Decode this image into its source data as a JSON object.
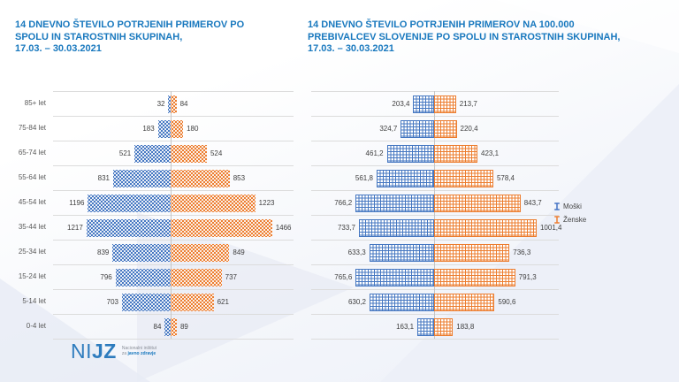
{
  "colors": {
    "title_blue": "#1878BE",
    "male_series": "#4472C4",
    "female_series": "#ED7D31",
    "category_label_text": "#595959",
    "value_label_text": "#404040",
    "gridline": "#DCDCDC"
  },
  "chart_data": [
    {
      "type": "bar",
      "variant": "diverging-population-pyramid",
      "title": "14 DNEVNO ŠTEVILO POTRJENIH PRIMEROV PO\nSPOLU IN STAROSTNIH SKUPINAH,\n17.03. – 30.03.2021",
      "categories": [
        "85+ let",
        "75-84 let",
        "65-74 let",
        "55-64 let",
        "45-54 let",
        "35-44 let",
        "25-34 let",
        "15-24 let",
        "5-14 let",
        "0-4 let"
      ],
      "series": [
        {
          "name": "Moški",
          "side": "left",
          "color": "#4472C4",
          "pattern": "dots",
          "values": [
            32,
            183,
            521,
            831,
            1196,
            1217,
            839,
            796,
            703,
            84
          ]
        },
        {
          "name": "Ženske",
          "side": "right",
          "color": "#ED7D31",
          "pattern": "dots",
          "values": [
            84,
            180,
            524,
            853,
            1223,
            1466,
            849,
            737,
            621,
            89
          ]
        }
      ],
      "xlim": [
        0,
        1700
      ],
      "grid": "horizontal-row-separators",
      "value_labels": "outside-bar-ends",
      "decimal_comma": false,
      "legend": "none"
    },
    {
      "type": "bar",
      "variant": "diverging-population-pyramid",
      "title": "14 DNEVNO ŠTEVILO POTRJENIH PRIMEROV NA 100.000\nPREBIVALCEV SLOVENIJE PO SPOLU IN STAROSTNIH SKUPINAH,\n17.03. – 30.03.2021",
      "categories": [
        "85+ let",
        "75-84 let",
        "65-74 let",
        "55-64 let",
        "45-54 let",
        "35-44 let",
        "25-34 let",
        "15-24 let",
        "5-14 let",
        "0-4 let"
      ],
      "series": [
        {
          "name": "Moški",
          "side": "left",
          "color": "#4472C4",
          "pattern": "grid",
          "values": [
            203.4,
            324.7,
            461.2,
            561.8,
            766.2,
            733.7,
            633.3,
            765.6,
            630.2,
            163.1
          ]
        },
        {
          "name": "Ženske",
          "side": "right",
          "color": "#ED7D31",
          "pattern": "grid",
          "values": [
            213.7,
            220.4,
            423.1,
            578.4,
            843.7,
            1001.4,
            736.3,
            791.3,
            590.6,
            183.8
          ]
        }
      ],
      "xlim": [
        0,
        1200
      ],
      "grid": "horizontal-row-separators",
      "value_labels": "outside-bar-ends",
      "decimal_comma": true,
      "legend": "right"
    }
  ],
  "legend": {
    "items": [
      {
        "label": "Moški",
        "color": "#4472C4",
        "icon": "ibeam-marker"
      },
      {
        "label": "Ženske",
        "color": "#ED7D31",
        "icon": "ibeam-marker"
      }
    ]
  },
  "logo": {
    "name": "NIJZ",
    "mark_light": "NI",
    "mark_bold": "JZ",
    "tagline_line1": "Nacionalni inštitut",
    "tagline_line2_prefix": "za ",
    "tagline_line2_highlight": "javno zdravje"
  }
}
